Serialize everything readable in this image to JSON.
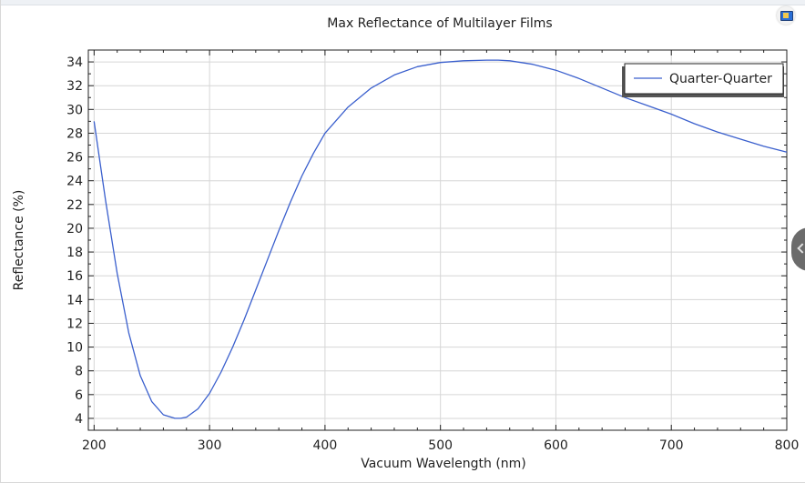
{
  "chart_data": {
    "type": "line",
    "title": "Max Reflectance of Multilayer Films",
    "xlabel": "Vacuum Wavelength (nm)",
    "ylabel": "Reflectance (%)",
    "xlim": [
      195,
      800
    ],
    "ylim": [
      3,
      35
    ],
    "xticks": [
      200,
      300,
      400,
      500,
      600,
      700,
      800
    ],
    "yticks": [
      4,
      6,
      8,
      10,
      12,
      14,
      16,
      18,
      20,
      22,
      24,
      26,
      28,
      30,
      32,
      34
    ],
    "grid": true,
    "legend_position": "top-right",
    "series": [
      {
        "name": "Quarter-Quarter",
        "color": "#3a5fcd",
        "x": [
          200,
          210,
          220,
          230,
          240,
          250,
          260,
          270,
          275,
          280,
          290,
          300,
          310,
          320,
          330,
          340,
          350,
          360,
          370,
          380,
          390,
          400,
          420,
          440,
          460,
          480,
          500,
          520,
          540,
          550,
          560,
          580,
          600,
          620,
          640,
          660,
          680,
          700,
          720,
          740,
          760,
          780,
          800
        ],
        "y": [
          29.0,
          22.3,
          16.2,
          11.2,
          7.6,
          5.4,
          4.3,
          4.0,
          4.0,
          4.1,
          4.8,
          6.1,
          7.9,
          10.0,
          12.3,
          14.8,
          17.3,
          19.8,
          22.2,
          24.4,
          26.3,
          28.0,
          30.2,
          31.8,
          32.9,
          33.6,
          33.95,
          34.1,
          34.15,
          34.15,
          34.1,
          33.8,
          33.3,
          32.6,
          31.8,
          31.0,
          30.3,
          29.6,
          28.8,
          28.1,
          27.5,
          26.9,
          26.4
        ]
      }
    ]
  },
  "ui": {
    "corner_icon": "image-snapshot-icon",
    "side_handle_icon": "chevron-left-icon"
  }
}
